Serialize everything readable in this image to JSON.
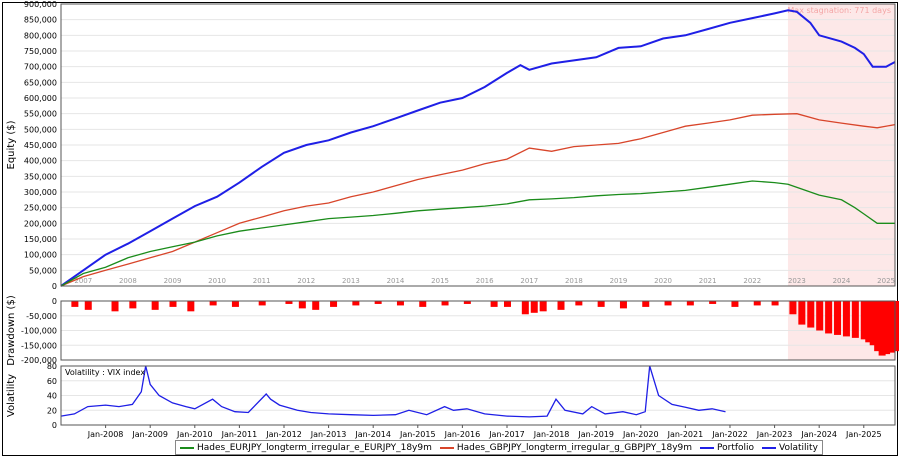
{
  "colors": {
    "portfolio": "#1f1fe6",
    "eurjpy": "#1b8c1b",
    "gbpjpy": "#d8452a",
    "volatility": "#1f1fe6",
    "drawdown": "#ff0000",
    "stagnation_bg": "#fde8e8",
    "stagnation_text": "#f4a6a6"
  },
  "stagnation_label": "Max stagnation: 771 days",
  "chart_data": [
    {
      "type": "line",
      "name": "equity",
      "ylabel": "Equity ($)",
      "ylim": [
        0,
        900000
      ],
      "yticks": [
        0,
        50000,
        100000,
        150000,
        200000,
        250000,
        300000,
        350000,
        400000,
        450000,
        500000,
        550000,
        600000,
        650000,
        700000,
        750000,
        800000,
        850000,
        900000
      ],
      "ytick_labels": [
        "0",
        "50,000",
        "100,000",
        "150,000",
        "200,000",
        "250,000",
        "300,000",
        "350,000",
        "400,000",
        "450,000",
        "500,000",
        "550,000",
        "600,000",
        "650,000",
        "700,000",
        "750,000",
        "800,000",
        "850,000",
        "900,000"
      ],
      "xlim": [
        2007.0,
        2025.7
      ],
      "year_labels": [
        "2007",
        "2008",
        "2009",
        "2010",
        "2011",
        "2012",
        "2013",
        "2014",
        "2015",
        "2016",
        "2017",
        "2018",
        "2019",
        "2020",
        "2021",
        "2022",
        "2023",
        "2024",
        "2025"
      ],
      "stagnation_period": [
        2023.3,
        2025.7
      ],
      "series": [
        {
          "name": "Portfolio",
          "color_key": "portfolio",
          "x": [
            2007.0,
            2007.3,
            2007.6,
            2008.0,
            2008.5,
            2009.0,
            2009.5,
            2010.0,
            2010.5,
            2011.0,
            2011.5,
            2012.0,
            2012.5,
            2013.0,
            2013.5,
            2014.0,
            2014.5,
            2015.0,
            2015.5,
            2016.0,
            2016.5,
            2017.0,
            2017.3,
            2017.5,
            2018.0,
            2018.5,
            2019.0,
            2019.5,
            2020.0,
            2020.5,
            2021.0,
            2021.5,
            2022.0,
            2022.5,
            2023.0,
            2023.3,
            2023.5,
            2023.8,
            2024.0,
            2024.5,
            2024.8,
            2025.0,
            2025.2,
            2025.5,
            2025.7
          ],
          "y": [
            0,
            30000,
            60000,
            100000,
            135000,
            175000,
            215000,
            255000,
            285000,
            330000,
            380000,
            425000,
            450000,
            465000,
            490000,
            510000,
            535000,
            560000,
            585000,
            600000,
            635000,
            680000,
            705000,
            690000,
            710000,
            720000,
            730000,
            760000,
            765000,
            790000,
            800000,
            820000,
            840000,
            855000,
            870000,
            880000,
            875000,
            840000,
            800000,
            780000,
            760000,
            740000,
            700000,
            700000,
            715000
          ]
        },
        {
          "name": "Hades_GBPJPY_longterm_irregular_g_GBPJPY_18y9m",
          "color_key": "gbpjpy",
          "x": [
            2007.0,
            2007.5,
            2008.0,
            2008.5,
            2009.0,
            2009.5,
            2010.0,
            2010.5,
            2011.0,
            2011.5,
            2012.0,
            2012.5,
            2013.0,
            2013.5,
            2014.0,
            2014.5,
            2015.0,
            2015.5,
            2016.0,
            2016.5,
            2017.0,
            2017.5,
            2018.0,
            2018.5,
            2019.0,
            2019.5,
            2020.0,
            2020.5,
            2021.0,
            2021.5,
            2022.0,
            2022.5,
            2023.0,
            2023.5,
            2024.0,
            2024.5,
            2025.0,
            2025.3,
            2025.7
          ],
          "y": [
            0,
            30000,
            50000,
            70000,
            90000,
            110000,
            140000,
            170000,
            200000,
            220000,
            240000,
            255000,
            265000,
            285000,
            300000,
            320000,
            340000,
            355000,
            370000,
            390000,
            405000,
            440000,
            430000,
            445000,
            450000,
            455000,
            470000,
            490000,
            510000,
            520000,
            530000,
            545000,
            548000,
            550000,
            530000,
            520000,
            510000,
            505000,
            515000
          ]
        },
        {
          "name": "Hades_EURJPY_longterm_irregular_e_EURJPY_18y9m",
          "color_key": "eurjpy",
          "x": [
            2007.0,
            2007.5,
            2008.0,
            2008.5,
            2009.0,
            2009.5,
            2010.0,
            2010.5,
            2011.0,
            2011.5,
            2012.0,
            2012.5,
            2013.0,
            2013.5,
            2014.0,
            2014.5,
            2015.0,
            2015.5,
            2016.0,
            2016.5,
            2017.0,
            2017.5,
            2018.0,
            2018.5,
            2019.0,
            2019.5,
            2020.0,
            2020.5,
            2021.0,
            2021.5,
            2022.0,
            2022.5,
            2023.0,
            2023.3,
            2023.6,
            2024.0,
            2024.5,
            2024.8,
            2025.0,
            2025.3,
            2025.7
          ],
          "y": [
            0,
            40000,
            60000,
            90000,
            110000,
            125000,
            140000,
            160000,
            175000,
            185000,
            195000,
            205000,
            215000,
            220000,
            225000,
            232000,
            240000,
            245000,
            250000,
            255000,
            262000,
            275000,
            278000,
            282000,
            288000,
            292000,
            295000,
            300000,
            305000,
            315000,
            325000,
            335000,
            330000,
            325000,
            310000,
            290000,
            275000,
            250000,
            230000,
            200000,
            200000
          ]
        }
      ]
    },
    {
      "type": "bar",
      "name": "drawdown",
      "ylabel": "Drawdown ($)",
      "ylim": [
        -200000,
        0
      ],
      "yticks": [
        0,
        -50000,
        -100000,
        -150000,
        -200000
      ],
      "ytick_labels": [
        "0",
        "-50,000",
        "-100,000",
        "-150,000",
        "-200,000"
      ],
      "x": [
        2007.3,
        2007.6,
        2008.2,
        2008.6,
        2009.1,
        2009.5,
        2009.9,
        2010.4,
        2010.9,
        2011.5,
        2012.1,
        2012.4,
        2012.7,
        2013.1,
        2013.6,
        2014.1,
        2014.6,
        2015.1,
        2015.6,
        2016.1,
        2016.7,
        2017.0,
        2017.4,
        2017.6,
        2017.8,
        2018.2,
        2018.6,
        2019.1,
        2019.6,
        2020.1,
        2020.6,
        2021.1,
        2021.6,
        2022.1,
        2022.6,
        2023.0,
        2023.4,
        2023.6,
        2023.8,
        2024.0,
        2024.2,
        2024.4,
        2024.6,
        2024.8,
        2025.0,
        2025.1,
        2025.2,
        2025.3,
        2025.4,
        2025.5,
        2025.6,
        2025.7
      ],
      "values": [
        -20000,
        -30000,
        -35000,
        -25000,
        -30000,
        -20000,
        -35000,
        -15000,
        -20000,
        -15000,
        -10000,
        -25000,
        -30000,
        -20000,
        -15000,
        -10000,
        -15000,
        -20000,
        -15000,
        -10000,
        -20000,
        -20000,
        -45000,
        -40000,
        -35000,
        -30000,
        -15000,
        -20000,
        -25000,
        -20000,
        -15000,
        -15000,
        -10000,
        -20000,
        -15000,
        -15000,
        -45000,
        -80000,
        -90000,
        -100000,
        -110000,
        -115000,
        -120000,
        -125000,
        -130000,
        -140000,
        -150000,
        -170000,
        -185000,
        -180000,
        -175000,
        -170000
      ]
    },
    {
      "type": "line",
      "name": "volatility",
      "title": "Volatility : VIX index",
      "ylabel": "Volatility",
      "ylim": [
        0,
        80
      ],
      "yticks": [
        0,
        20,
        40,
        60,
        80
      ],
      "ytick_labels": [
        "0",
        "20",
        "40",
        "60",
        "80"
      ],
      "date_ticks": [
        "Jan-2008",
        "Jan-2009",
        "Jan-2010",
        "Jan-2011",
        "Jan-2012",
        "Jan-2013",
        "Jan-2014",
        "Jan-2015",
        "Jan-2016",
        "Jan-2017",
        "Jan-2018",
        "Jan-2019",
        "Jan-2020",
        "Jan-2021",
        "Jan-2022",
        "Jan-2023",
        "Jan-2024",
        "Jan-2025"
      ],
      "date_tick_positions": [
        2008.0,
        2009.0,
        2010.0,
        2011.0,
        2012.0,
        2013.0,
        2014.0,
        2015.0,
        2016.0,
        2017.0,
        2018.0,
        2019.0,
        2020.0,
        2021.0,
        2022.0,
        2023.0,
        2024.0,
        2025.0
      ],
      "series": [
        {
          "name": "Volatility",
          "color_key": "volatility",
          "x": [
            2007.0,
            2007.3,
            2007.6,
            2008.0,
            2008.3,
            2008.6,
            2008.8,
            2008.9,
            2009.0,
            2009.2,
            2009.5,
            2009.8,
            2010.0,
            2010.4,
            2010.6,
            2010.9,
            2011.2,
            2011.6,
            2011.7,
            2011.9,
            2012.3,
            2012.6,
            2013.0,
            2013.5,
            2014.0,
            2014.5,
            2014.8,
            2015.2,
            2015.6,
            2015.8,
            2016.1,
            2016.5,
            2017.0,
            2017.5,
            2017.9,
            2018.1,
            2018.3,
            2018.7,
            2018.9,
            2019.2,
            2019.6,
            2019.9,
            2020.1,
            2020.2,
            2020.4,
            2020.7,
            2021.0,
            2021.3,
            2021.6,
            2021.9
          ],
          "y": [
            12,
            15,
            25,
            27,
            25,
            28,
            45,
            80,
            55,
            40,
            30,
            25,
            22,
            35,
            25,
            18,
            17,
            42,
            35,
            27,
            20,
            17,
            15,
            14,
            13,
            14,
            20,
            14,
            25,
            20,
            22,
            15,
            12,
            11,
            12,
            35,
            20,
            15,
            25,
            15,
            18,
            14,
            18,
            80,
            40,
            28,
            24,
            20,
            22,
            18
          ]
        }
      ]
    }
  ],
  "legend": {
    "items": [
      {
        "label": "Hades_EURJPY_longterm_irregular_e_EURJPY_18y9m",
        "color_key": "eurjpy"
      },
      {
        "label": "Hades_GBPJPY_longterm_irregular_g_GBPJPY_18y9m",
        "color_key": "gbpjpy"
      },
      {
        "label": "Portfolio",
        "color_key": "portfolio"
      },
      {
        "label": "Volatility",
        "color_key": "volatility"
      }
    ]
  }
}
